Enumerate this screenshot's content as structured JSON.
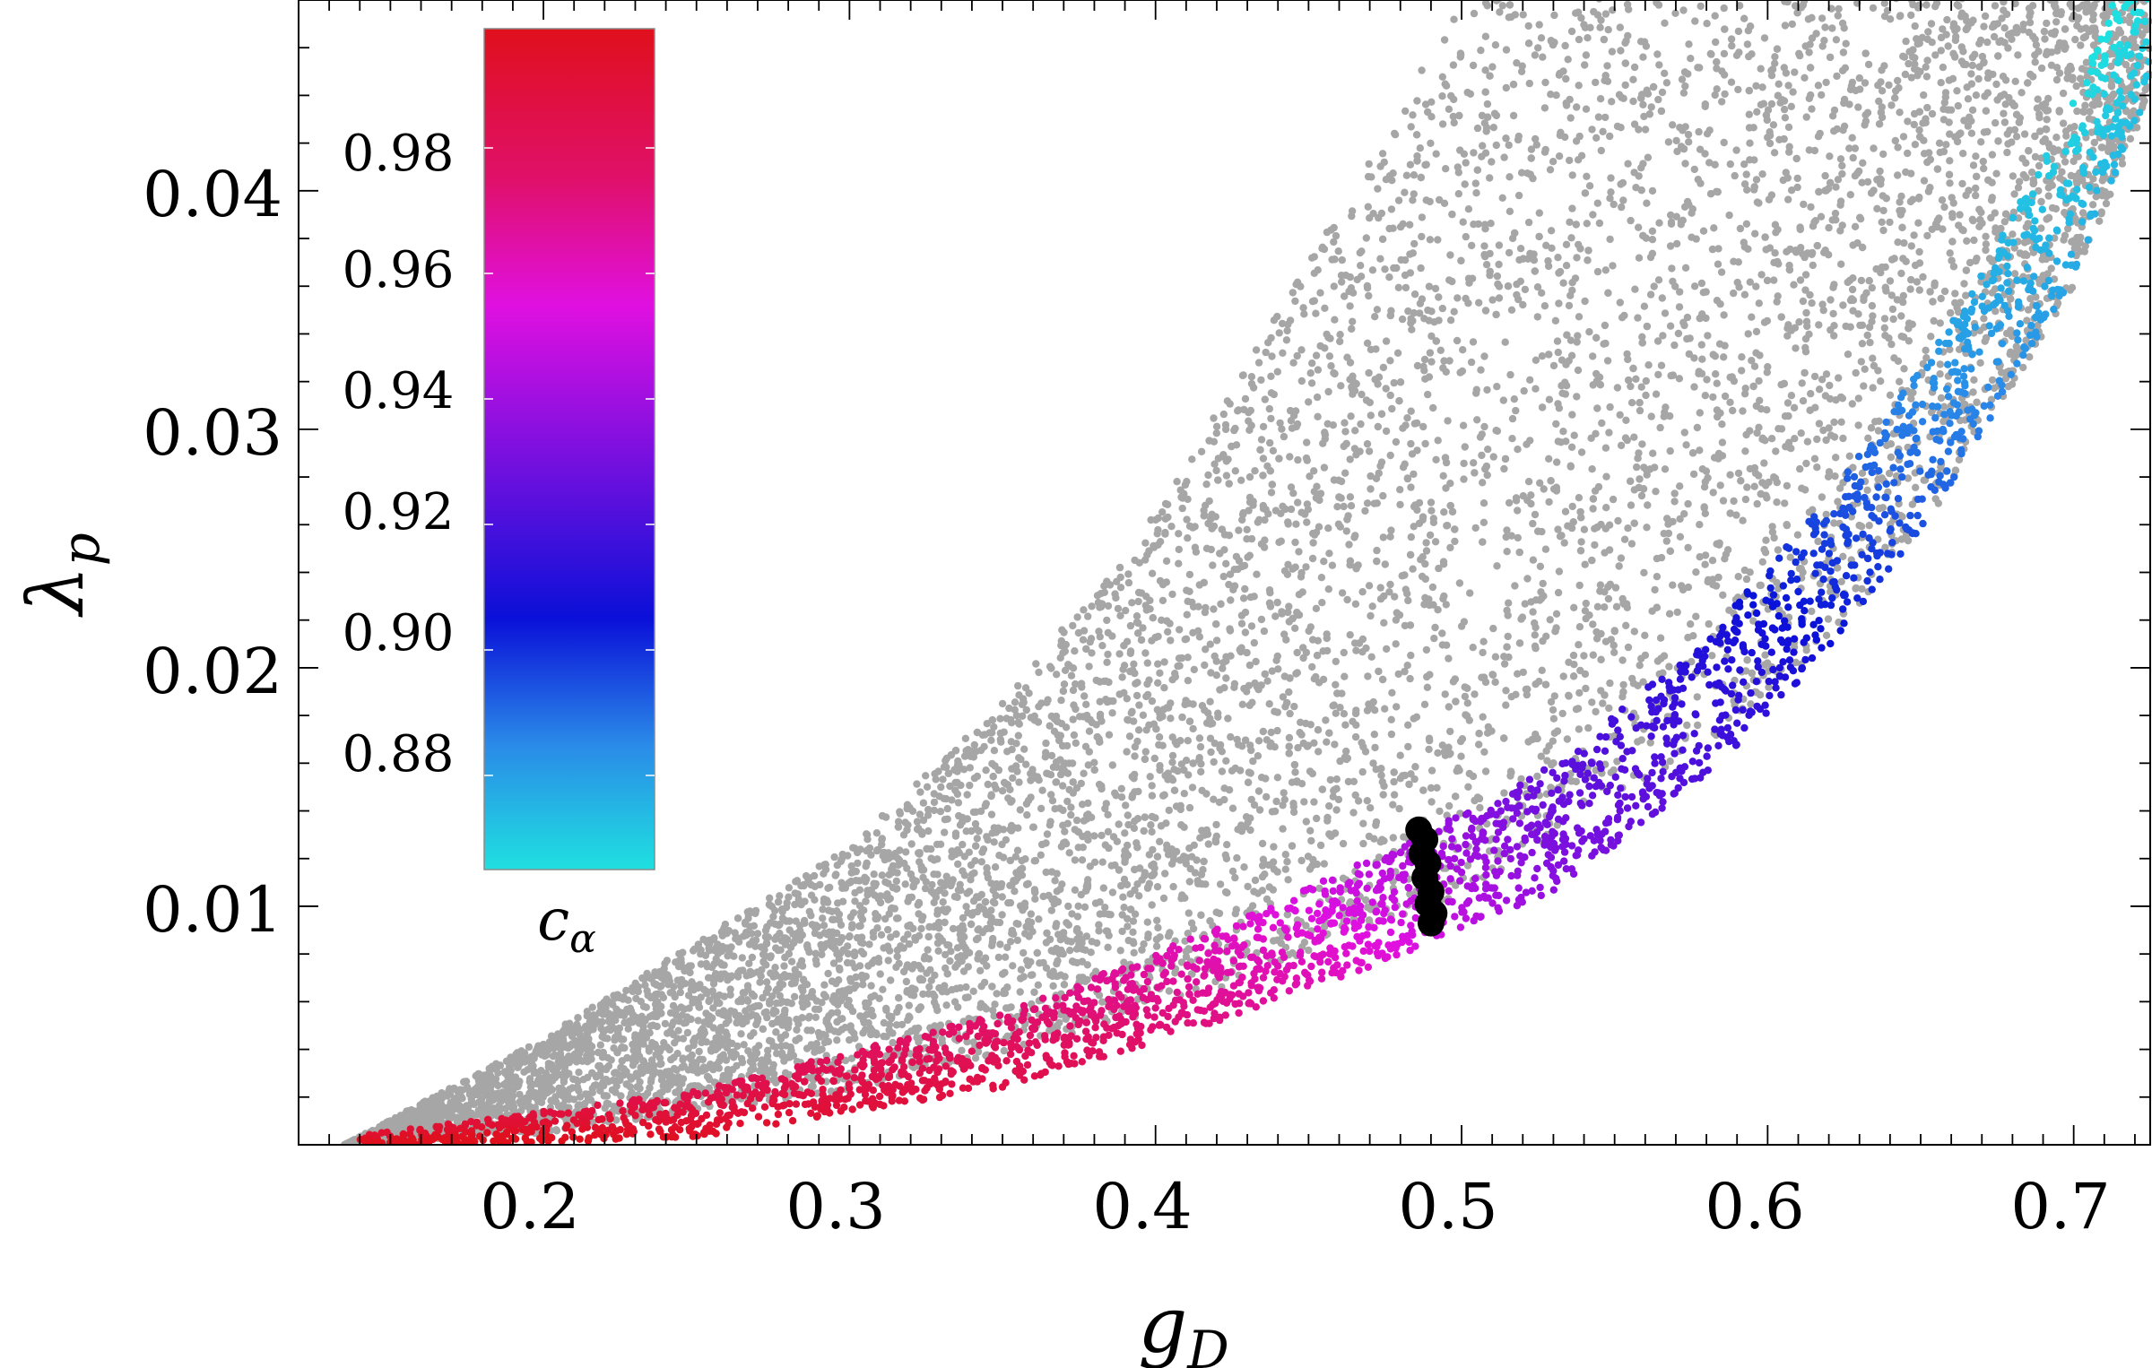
{
  "chart_data": {
    "type": "scatter",
    "xlabel": "g",
    "xlabel_sub": "D",
    "ylabel": "λ",
    "ylabel_sub": "p",
    "xlim": [
      0.12,
      0.725
    ],
    "ylim": [
      0.0,
      0.048
    ],
    "x_ticks": [
      "0.2",
      "0.3",
      "0.4",
      "0.5",
      "0.6",
      "0.7"
    ],
    "y_ticks": [
      "0.01",
      "0.02",
      "0.03",
      "0.04"
    ],
    "x_tick_values": [
      0.2,
      0.3,
      0.4,
      0.5,
      0.6,
      0.7
    ],
    "y_tick_values": [
      0.01,
      0.02,
      0.03,
      0.04
    ],
    "grid": false,
    "colorbar": {
      "label": "c",
      "label_sub": "α",
      "range": [
        0.865,
        0.999
      ],
      "ticks": [
        "0.98",
        "0.96",
        "0.94",
        "0.92",
        "0.90",
        "0.88"
      ],
      "tick_values": [
        0.98,
        0.96,
        0.94,
        0.92,
        0.9,
        0.88
      ],
      "colormap": [
        {
          "v": 0.865,
          "color": "#1fe0e0"
        },
        {
          "v": 0.885,
          "color": "#2a8ae8"
        },
        {
          "v": 0.905,
          "color": "#0a10d8"
        },
        {
          "v": 0.935,
          "color": "#8a10e0"
        },
        {
          "v": 0.955,
          "color": "#e010e0"
        },
        {
          "v": 0.975,
          "color": "#e0106a"
        },
        {
          "v": 0.999,
          "color": "#e0101c"
        }
      ]
    },
    "series": [
      {
        "kind": "gray-scan",
        "color": "#a6a6a6",
        "lower_boundary": [
          [
            0.135,
            0.0
          ],
          [
            0.2,
            0.0005
          ],
          [
            0.3,
            0.0023
          ],
          [
            0.4,
            0.0055
          ],
          [
            0.5,
            0.0105
          ],
          [
            0.6,
            0.0185
          ],
          [
            0.65,
            0.0255
          ],
          [
            0.7,
            0.036
          ],
          [
            0.725,
            0.044
          ]
        ],
        "upper_boundary": [
          [
            0.135,
            0.0
          ],
          [
            0.2,
            0.0045
          ],
          [
            0.3,
            0.0125
          ],
          [
            0.35,
            0.0185
          ],
          [
            0.4,
            0.0265
          ],
          [
            0.45,
            0.037
          ],
          [
            0.5,
            0.048
          ]
        ]
      },
      {
        "kind": "colored-band",
        "points_ca_range": [
          0.865,
          0.999
        ],
        "band": [
          [
            0.14,
            0.0,
            0.999
          ],
          [
            0.25,
            0.001,
            0.99
          ],
          [
            0.35,
            0.0035,
            0.98
          ],
          [
            0.42,
            0.0065,
            0.965
          ],
          [
            0.48,
            0.0095,
            0.95
          ],
          [
            0.53,
            0.0125,
            0.93
          ],
          [
            0.58,
            0.0175,
            0.915
          ],
          [
            0.62,
            0.023,
            0.9
          ],
          [
            0.66,
            0.03,
            0.885
          ],
          [
            0.7,
            0.039,
            0.872
          ],
          [
            0.725,
            0.047,
            0.866
          ]
        ]
      },
      {
        "kind": "black-highlight",
        "color": "#000000",
        "points": [
          [
            0.486,
            0.0132
          ],
          [
            0.488,
            0.0128
          ],
          [
            0.487,
            0.0122
          ],
          [
            0.489,
            0.0118
          ],
          [
            0.488,
            0.0112
          ],
          [
            0.49,
            0.0106
          ],
          [
            0.489,
            0.0101
          ],
          [
            0.491,
            0.0097
          ],
          [
            0.49,
            0.0093
          ]
        ]
      }
    ]
  }
}
